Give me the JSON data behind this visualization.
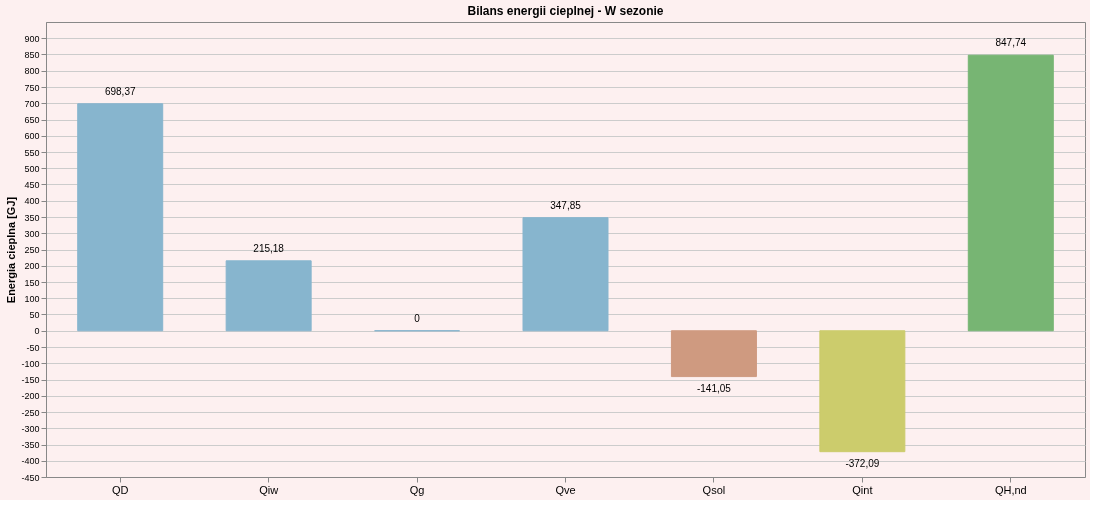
{
  "chart_data": {
    "type": "bar",
    "title": "Bilans energii cieplnej - W sezonie",
    "ylabel": "Energia cieplna [GJ]",
    "categories": [
      "QD",
      "Qiw",
      "Qg",
      "Qve",
      "Qsol",
      "Qint",
      "QH,nd"
    ],
    "values": [
      698.37,
      215.18,
      0,
      347.85,
      -141.05,
      -372.09,
      847.74
    ],
    "value_labels": [
      "698,37",
      "215,18",
      "0",
      "347,85",
      "-141,05",
      "-372,09",
      "847,74"
    ],
    "colors": [
      "#87b5ce",
      "#87b5ce",
      "#87b5ce",
      "#87b5ce",
      "#cf9a80",
      "#cccc6c",
      "#77b573"
    ],
    "ylim": [
      -450,
      950
    ],
    "yticks": [
      -450,
      -400,
      -350,
      -300,
      -250,
      -200,
      -150,
      -100,
      -50,
      0,
      50,
      100,
      150,
      200,
      250,
      300,
      350,
      400,
      450,
      500,
      550,
      600,
      650,
      700,
      750,
      800,
      850,
      900
    ],
    "grid": "y"
  }
}
